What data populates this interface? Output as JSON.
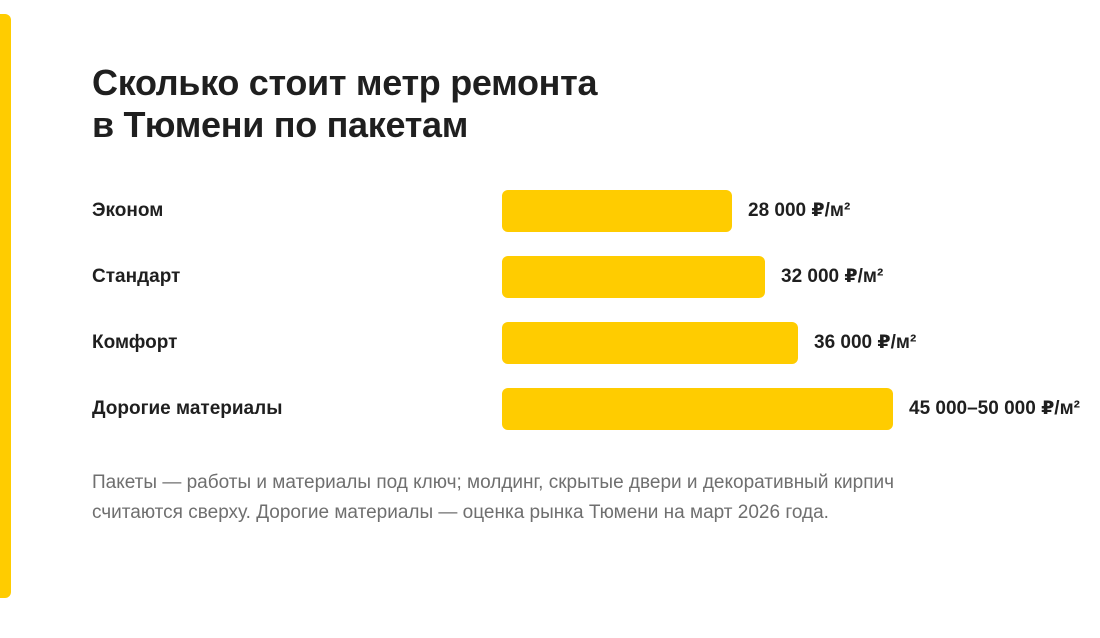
{
  "colors": {
    "accent": "#ffcc00",
    "bar": "#ffcc00",
    "text": "#1f1f1f",
    "muted": "#6f6f6f"
  },
  "chart_data": {
    "type": "bar",
    "orientation": "horizontal",
    "title_lines": [
      "Сколько стоит метр ремонта",
      "в Тюмени по пакетам"
    ],
    "categories": [
      "Эконом",
      "Стандарт",
      "Комфорт",
      "Дорогие материалы"
    ],
    "values": [
      28000,
      32000,
      36000,
      47500
    ],
    "value_ranges": [
      [
        28000,
        28000
      ],
      [
        32000,
        32000
      ],
      [
        36000,
        36000
      ],
      [
        45000,
        50000
      ]
    ],
    "value_labels": [
      "28 000 ₽/м²",
      "32 000 ₽/м²",
      "36 000 ₽/м²",
      "45 000–50 000 ₽/м²"
    ],
    "unit": "₽/м²",
    "xlim": [
      0,
      48000
    ],
    "grid": false,
    "legend": "none"
  },
  "footnote": "Пакеты — работы и материалы под ключ; молдинг, скрытые двери и декоративный кирпич считаются сверху. Дорогие материалы — оценка рынка Тюмени на март 2026 года."
}
